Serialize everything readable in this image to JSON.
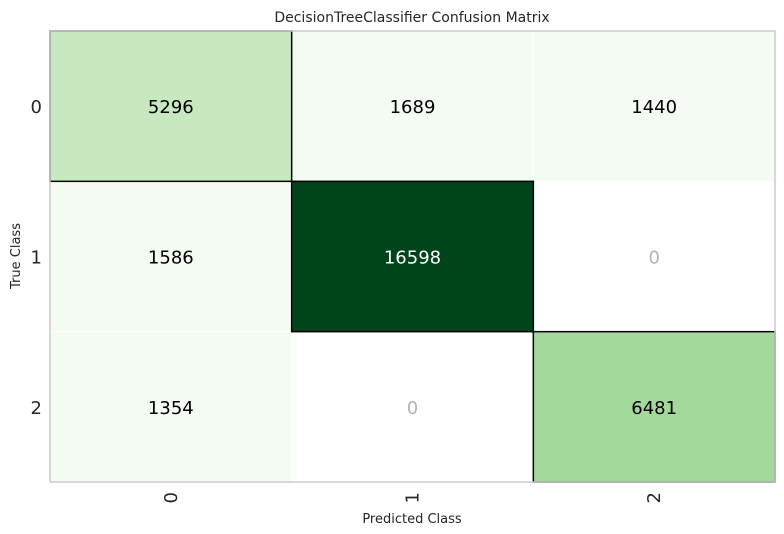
{
  "chart_data": {
    "type": "heatmap",
    "title": "DecisionTreeClassifier Confusion Matrix",
    "xlabel": "Predicted Class",
    "ylabel": "True Class",
    "x_categories": [
      "0",
      "1",
      "2"
    ],
    "y_categories": [
      "0",
      "1",
      "2"
    ],
    "values": [
      [
        5296,
        1689,
        1440
      ],
      [
        1586,
        16598,
        0
      ],
      [
        1354,
        0,
        6481
      ]
    ],
    "diagonal_outlined": true,
    "grid": false,
    "colormap": "Greens",
    "colors": {
      "zero_cell": "#ffffff",
      "zero_text": "#b4b4b4",
      "text_dark": "#000000",
      "text_light": "#ffffff",
      "axis_frame": "#cccccc",
      "diagonal_border": "#000000"
    }
  }
}
